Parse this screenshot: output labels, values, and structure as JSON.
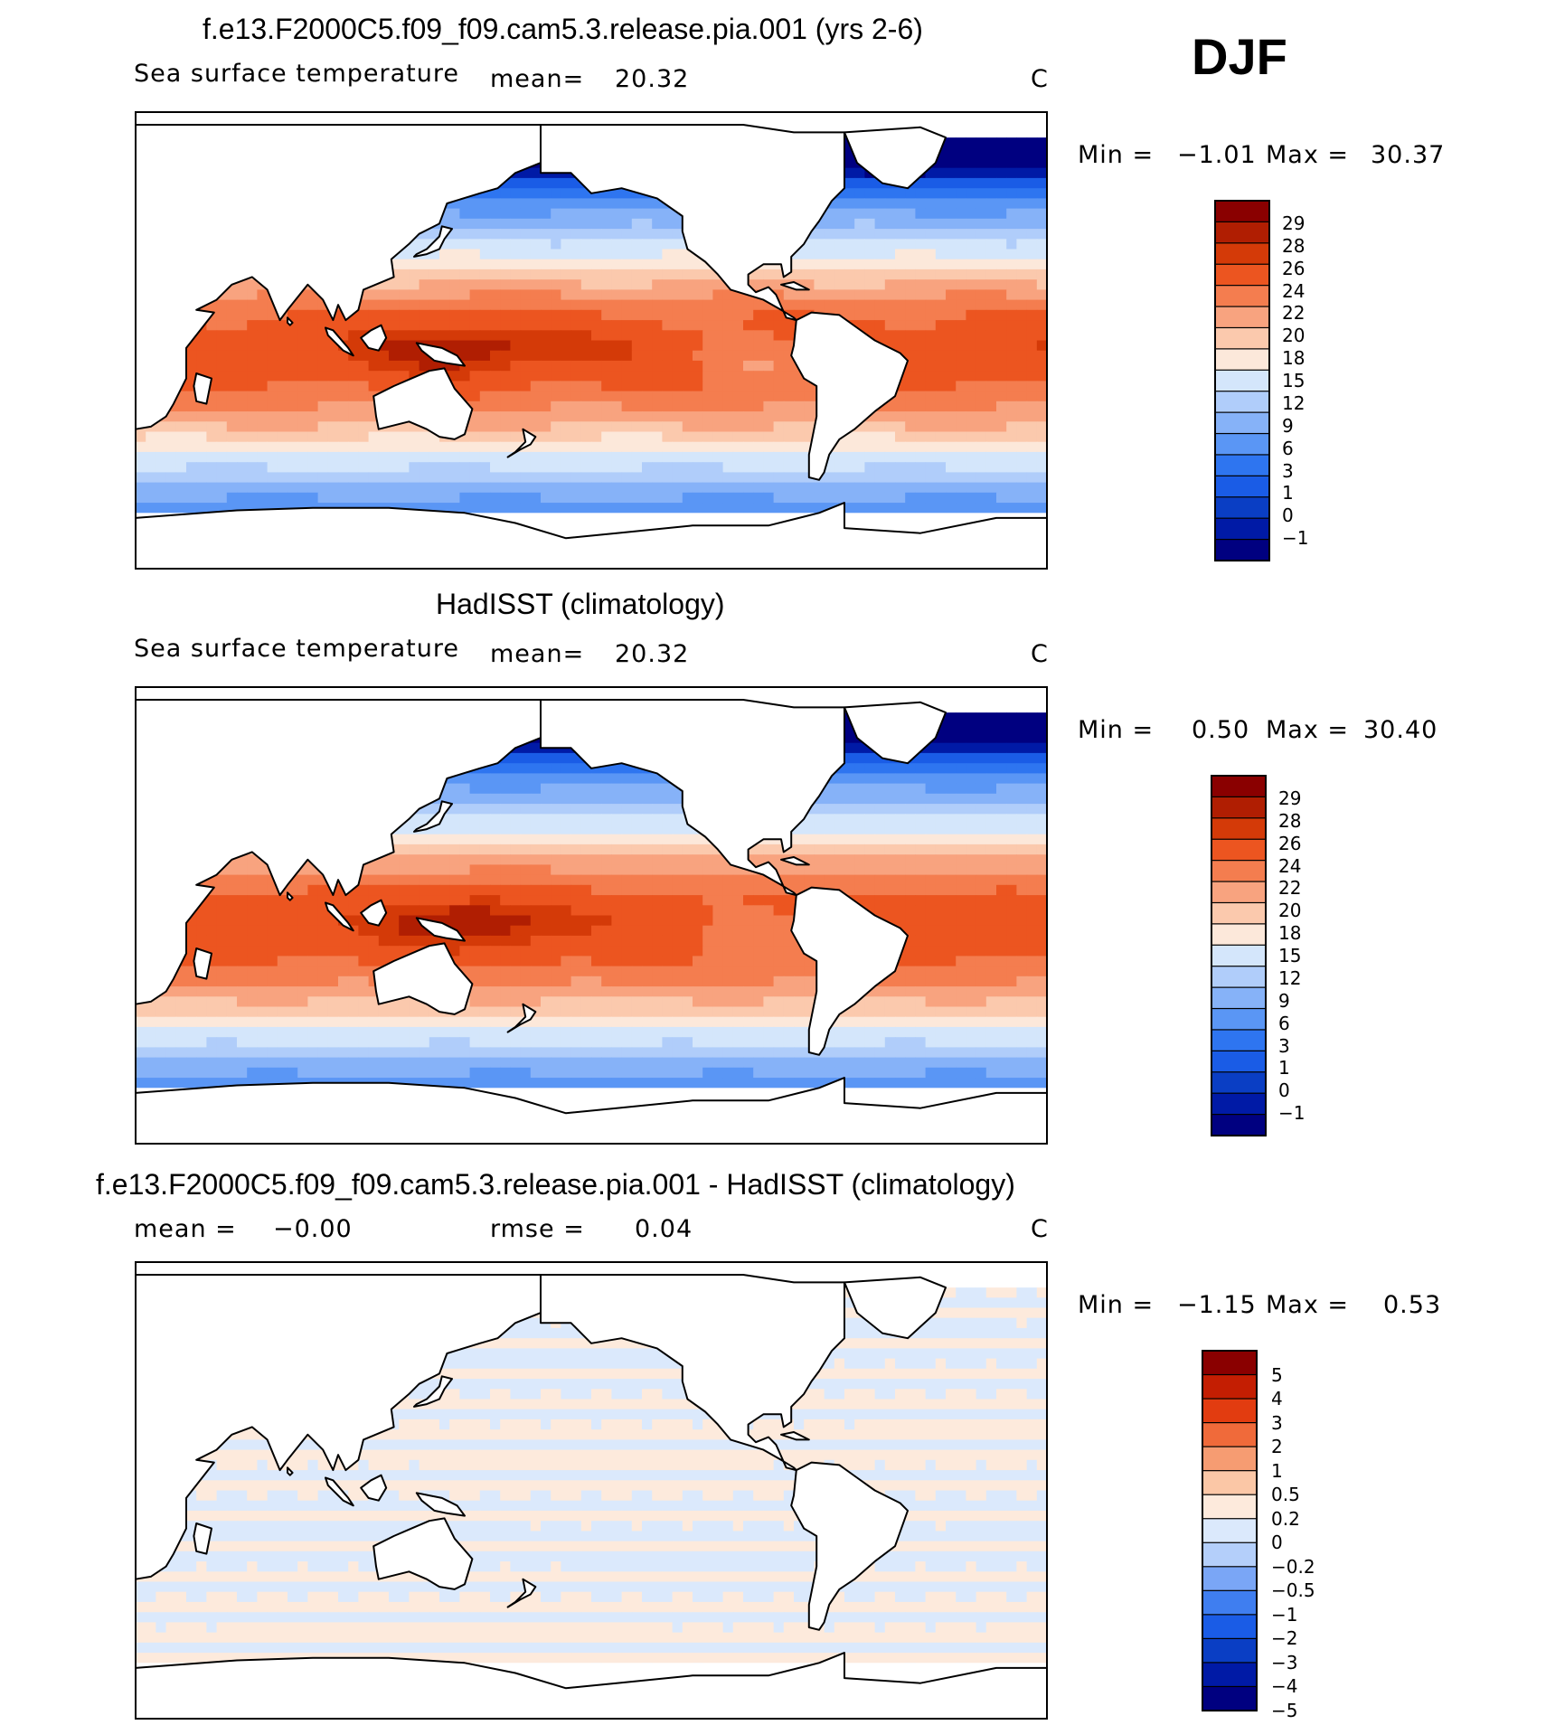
{
  "season": "DJF",
  "panels": [
    {
      "id": "model",
      "title": "f.e13.F2000C5.f09_f09.cam5.3.release.pia.001 (yrs 2-6)",
      "left_label": "Sea surface temperature",
      "stat1_label": "mean=",
      "stat1_value": "20.32",
      "stat2_label": "",
      "stat2_value": "",
      "units": "C",
      "min_label": "Min =",
      "min_value": "−1.01",
      "max_label": "Max =",
      "max_value": "30.37",
      "colorbar_labels": [
        "29",
        "28",
        "26",
        "24",
        "22",
        "20",
        "18",
        "15",
        "12",
        "9",
        "6",
        "3",
        "1",
        "0",
        "−1"
      ]
    },
    {
      "id": "obs",
      "title": "HadISST (climatology)",
      "left_label": "Sea surface temperature",
      "stat1_label": "mean=",
      "stat1_value": "20.32",
      "stat2_label": "",
      "stat2_value": "",
      "units": "C",
      "min_label": "Min =",
      "min_value": "0.50",
      "max_label": "Max =",
      "max_value": "30.40",
      "colorbar_labels": [
        "29",
        "28",
        "26",
        "24",
        "22",
        "20",
        "18",
        "15",
        "12",
        "9",
        "6",
        "3",
        "1",
        "0",
        "−1"
      ]
    },
    {
      "id": "diff",
      "title": "f.e13.F2000C5.f09_f09.cam5.3.release.pia.001 - HadISST (climatology)",
      "left_label": "",
      "stat1_label": "mean =",
      "stat1_value": "−0.00",
      "stat2_label": "rmse =",
      "stat2_value": "0.04",
      "units": "C",
      "min_label": "Min =",
      "min_value": "−1.15",
      "max_label": "Max =",
      "max_value": "0.53",
      "colorbar_labels": [
        "5",
        "4",
        "3",
        "2",
        "1",
        "0.5",
        "0.2",
        "0",
        "−0.2",
        "−0.5",
        "−1",
        "−2",
        "−3",
        "−4",
        "−5"
      ]
    }
  ],
  "colors": {
    "sst_scale": [
      "#000080",
      "#001aa6",
      "#0a3ec4",
      "#1a5ce6",
      "#2e75f0",
      "#5a96f5",
      "#86b2f8",
      "#b0cdfa",
      "#d4e6fb",
      "#fce8da",
      "#fbc9ad",
      "#f8a37f",
      "#f47d4f",
      "#ec5520",
      "#d43a08",
      "#b01e02",
      "#8a0000"
    ],
    "diff_scale": [
      "#000080",
      "#001aa6",
      "#0a3ec4",
      "#1a5ce6",
      "#3f7ef0",
      "#7aa6f6",
      "#b4cffa",
      "#dbe9fc",
      "#fdeadc",
      "#fbc7a6",
      "#f69c72",
      "#f06a3a",
      "#e23c10",
      "#c41e02",
      "#8a0000"
    ],
    "land": "#ffffff",
    "coast": "#000000"
  }
}
